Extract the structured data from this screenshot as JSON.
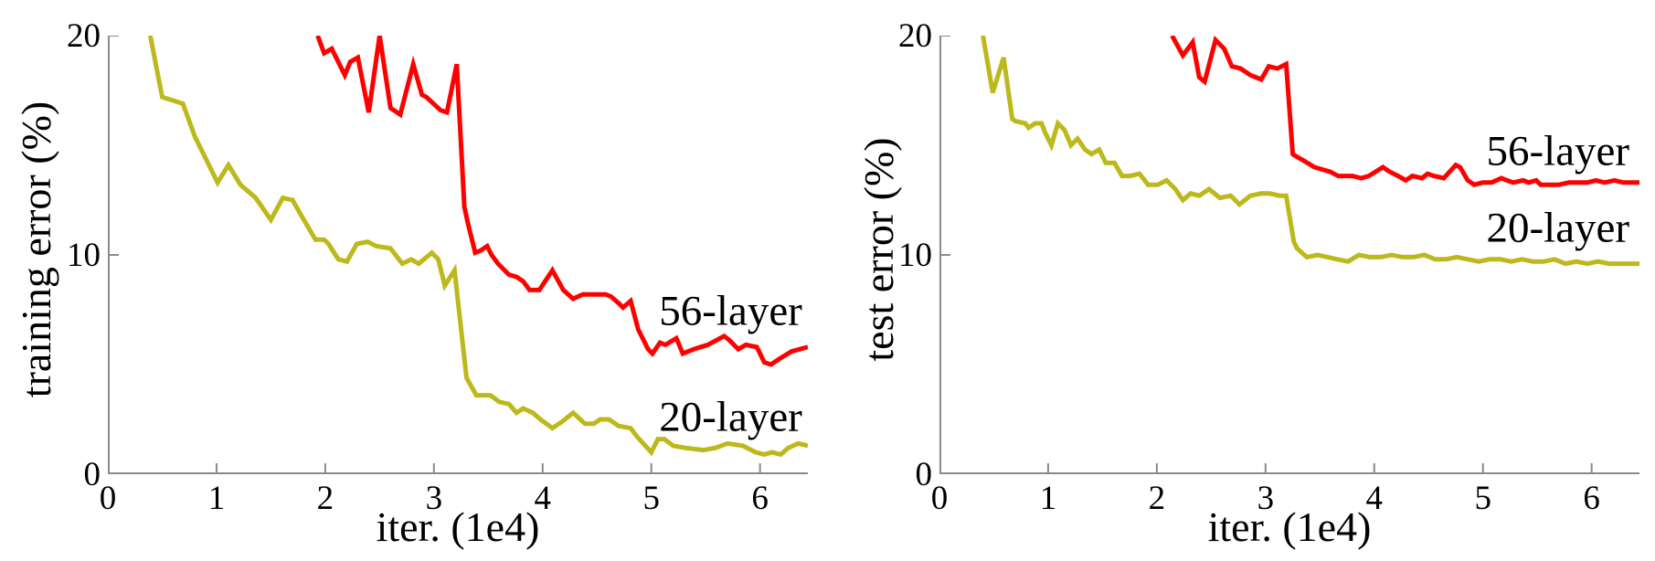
{
  "figure": {
    "background": "#ffffff",
    "text_color": "#000000",
    "axis_color": "#8a8a8a"
  },
  "chart_data": [
    {
      "type": "line",
      "name": "training-error-plot",
      "title": "",
      "xlabel": "iter. (1e4)",
      "ylabel": "training error (%)",
      "xlim": [
        0,
        6.44
      ],
      "ylim": [
        0,
        20
      ],
      "xticks": [
        0,
        1,
        2,
        3,
        4,
        5,
        6
      ],
      "yticks": [
        0,
        10,
        20
      ],
      "grid": false,
      "legend": "inline-annotations",
      "axis_color": "#8a8a8a",
      "line_width": 5,
      "annotations": [
        {
          "text": "56-layer",
          "x": 5.73,
          "y": 7.4
        },
        {
          "text": "20-layer",
          "x": 5.73,
          "y": 2.6
        }
      ],
      "series": [
        {
          "name": "56-layer",
          "color": "#ff0000",
          "points": [
            [
              1.93,
              20
            ],
            [
              1.99,
              19.2
            ],
            [
              2.06,
              19.4
            ],
            [
              2.13,
              18.7
            ],
            [
              2.18,
              18.2
            ],
            [
              2.23,
              18.8
            ],
            [
              2.3,
              19.0
            ],
            [
              2.4,
              16.5
            ],
            [
              2.5,
              20.0
            ],
            [
              2.6,
              16.7
            ],
            [
              2.69,
              16.4
            ],
            [
              2.81,
              18.7
            ],
            [
              2.89,
              17.3
            ],
            [
              2.93,
              17.2
            ],
            [
              3.06,
              16.6
            ],
            [
              3.12,
              16.5
            ],
            [
              3.21,
              18.7
            ],
            [
              3.28,
              12.2
            ],
            [
              3.31,
              11.5
            ],
            [
              3.38,
              10.1
            ],
            [
              3.43,
              10.2
            ],
            [
              3.49,
              10.4
            ],
            [
              3.53,
              10.0
            ],
            [
              3.59,
              9.6
            ],
            [
              3.69,
              9.1
            ],
            [
              3.76,
              9.0
            ],
            [
              3.82,
              8.8
            ],
            [
              3.88,
              8.4
            ],
            [
              3.97,
              8.4
            ],
            [
              4.09,
              9.3
            ],
            [
              4.19,
              8.4
            ],
            [
              4.28,
              8.0
            ],
            [
              4.37,
              8.2
            ],
            [
              4.45,
              8.2
            ],
            [
              4.58,
              8.2
            ],
            [
              4.63,
              8.1
            ],
            [
              4.7,
              7.8
            ],
            [
              4.74,
              7.6
            ],
            [
              4.81,
              7.9
            ],
            [
              4.88,
              6.6
            ],
            [
              4.97,
              5.7
            ],
            [
              5.01,
              5.5
            ],
            [
              5.08,
              6.0
            ],
            [
              5.13,
              5.9
            ],
            [
              5.23,
              6.2
            ],
            [
              5.29,
              5.5
            ],
            [
              5.39,
              5.7
            ],
            [
              5.52,
              5.9
            ],
            [
              5.67,
              6.3
            ],
            [
              5.72,
              6.1
            ],
            [
              5.8,
              5.7
            ],
            [
              5.87,
              5.9
            ],
            [
              5.97,
              5.8
            ],
            [
              6.04,
              5.1
            ],
            [
              6.1,
              5.0
            ],
            [
              6.19,
              5.3
            ],
            [
              6.29,
              5.6
            ],
            [
              6.44,
              5.8
            ]
          ]
        },
        {
          "name": "20-layer",
          "color": "#bdb81c",
          "points": [
            [
              0.39,
              20
            ],
            [
              0.5,
              17.2
            ],
            [
              0.69,
              16.9
            ],
            [
              0.8,
              15.4
            ],
            [
              1.01,
              13.3
            ],
            [
              1.11,
              14.1
            ],
            [
              1.22,
              13.2
            ],
            [
              1.36,
              12.6
            ],
            [
              1.5,
              11.6
            ],
            [
              1.61,
              12.6
            ],
            [
              1.7,
              12.5
            ],
            [
              1.78,
              11.8
            ],
            [
              1.91,
              10.7
            ],
            [
              1.99,
              10.7
            ],
            [
              2.03,
              10.5
            ],
            [
              2.12,
              9.8
            ],
            [
              2.2,
              9.7
            ],
            [
              2.29,
              10.5
            ],
            [
              2.39,
              10.6
            ],
            [
              2.47,
              10.4
            ],
            [
              2.6,
              10.3
            ],
            [
              2.71,
              9.6
            ],
            [
              2.79,
              9.8
            ],
            [
              2.86,
              9.6
            ],
            [
              2.98,
              10.1
            ],
            [
              3.04,
              9.8
            ],
            [
              3.1,
              8.6
            ],
            [
              3.19,
              9.3
            ],
            [
              3.25,
              6.6
            ],
            [
              3.3,
              4.4
            ],
            [
              3.39,
              3.6
            ],
            [
              3.52,
              3.6
            ],
            [
              3.6,
              3.3
            ],
            [
              3.69,
              3.2
            ],
            [
              3.76,
              2.8
            ],
            [
              3.82,
              3.0
            ],
            [
              3.91,
              2.8
            ],
            [
              3.98,
              2.5
            ],
            [
              4.09,
              2.1
            ],
            [
              4.18,
              2.4
            ],
            [
              4.28,
              2.8
            ],
            [
              4.39,
              2.3
            ],
            [
              4.47,
              2.3
            ],
            [
              4.53,
              2.5
            ],
            [
              4.61,
              2.5
            ],
            [
              4.7,
              2.2
            ],
            [
              4.81,
              2.1
            ],
            [
              4.87,
              1.7
            ],
            [
              5.0,
              1.0
            ],
            [
              5.06,
              1.6
            ],
            [
              5.12,
              1.6
            ],
            [
              5.2,
              1.3
            ],
            [
              5.31,
              1.2
            ],
            [
              5.48,
              1.1
            ],
            [
              5.59,
              1.2
            ],
            [
              5.7,
              1.4
            ],
            [
              5.84,
              1.3
            ],
            [
              5.96,
              1.0
            ],
            [
              6.04,
              0.9
            ],
            [
              6.11,
              1.0
            ],
            [
              6.19,
              0.9
            ],
            [
              6.26,
              1.2
            ],
            [
              6.35,
              1.4
            ],
            [
              6.44,
              1.3
            ]
          ]
        }
      ]
    },
    {
      "type": "line",
      "name": "test-error-plot",
      "title": "",
      "xlabel": "iter. (1e4)",
      "ylabel": "test error (%)",
      "xlim": [
        0,
        6.44
      ],
      "ylim": [
        0,
        20
      ],
      "xticks": [
        0,
        1,
        2,
        3,
        4,
        5,
        6
      ],
      "yticks": [
        0,
        10,
        20
      ],
      "grid": false,
      "legend": "inline-annotations",
      "axis_color": "#8a8a8a",
      "line_width": 5,
      "annotations": [
        {
          "text": "56-layer",
          "x": 5.69,
          "y": 14.7
        },
        {
          "text": "20-layer",
          "x": 5.69,
          "y": 11.2
        }
      ],
      "series": [
        {
          "name": "56-layer",
          "color": "#ff0000",
          "points": [
            [
              2.14,
              20
            ],
            [
              2.24,
              19.1
            ],
            [
              2.33,
              19.7
            ],
            [
              2.39,
              18.1
            ],
            [
              2.44,
              17.9
            ],
            [
              2.54,
              19.8
            ],
            [
              2.62,
              19.4
            ],
            [
              2.69,
              18.6
            ],
            [
              2.77,
              18.5
            ],
            [
              2.86,
              18.2
            ],
            [
              2.96,
              18.0
            ],
            [
              3.03,
              18.6
            ],
            [
              3.11,
              18.5
            ],
            [
              3.19,
              18.7
            ],
            [
              3.25,
              14.6
            ],
            [
              3.28,
              14.5
            ],
            [
              3.35,
              14.3
            ],
            [
              3.45,
              14.0
            ],
            [
              3.59,
              13.8
            ],
            [
              3.67,
              13.6
            ],
            [
              3.8,
              13.6
            ],
            [
              3.88,
              13.5
            ],
            [
              3.95,
              13.6
            ],
            [
              4.08,
              14.0
            ],
            [
              4.14,
              13.8
            ],
            [
              4.22,
              13.6
            ],
            [
              4.29,
              13.4
            ],
            [
              4.35,
              13.6
            ],
            [
              4.44,
              13.5
            ],
            [
              4.49,
              13.7
            ],
            [
              4.55,
              13.6
            ],
            [
              4.64,
              13.5
            ],
            [
              4.75,
              14.1
            ],
            [
              4.79,
              14.0
            ],
            [
              4.86,
              13.4
            ],
            [
              4.92,
              13.2
            ],
            [
              5.0,
              13.3
            ],
            [
              5.08,
              13.3
            ],
            [
              5.17,
              13.5
            ],
            [
              5.22,
              13.4
            ],
            [
              5.28,
              13.3
            ],
            [
              5.37,
              13.4
            ],
            [
              5.42,
              13.3
            ],
            [
              5.49,
              13.4
            ],
            [
              5.53,
              13.2
            ],
            [
              5.61,
              13.2
            ],
            [
              5.7,
              13.2
            ],
            [
              5.79,
              13.3
            ],
            [
              5.88,
              13.3
            ],
            [
              5.96,
              13.3
            ],
            [
              6.04,
              13.4
            ],
            [
              6.12,
              13.3
            ],
            [
              6.21,
              13.4
            ],
            [
              6.29,
              13.3
            ],
            [
              6.44,
              13.3
            ]
          ]
        },
        {
          "name": "20-layer",
          "color": "#bdb81c",
          "points": [
            [
              0.4,
              20
            ],
            [
              0.49,
              17.4
            ],
            [
              0.59,
              19.0
            ],
            [
              0.67,
              16.2
            ],
            [
              0.7,
              16.1
            ],
            [
              0.79,
              16.0
            ],
            [
              0.82,
              15.8
            ],
            [
              0.88,
              16.0
            ],
            [
              0.94,
              16.0
            ],
            [
              0.97,
              15.6
            ],
            [
              1.03,
              15.0
            ],
            [
              1.09,
              16.0
            ],
            [
              1.15,
              15.7
            ],
            [
              1.21,
              15.0
            ],
            [
              1.27,
              15.3
            ],
            [
              1.34,
              14.8
            ],
            [
              1.4,
              14.6
            ],
            [
              1.47,
              14.8
            ],
            [
              1.53,
              14.2
            ],
            [
              1.61,
              14.2
            ],
            [
              1.68,
              13.6
            ],
            [
              1.75,
              13.6
            ],
            [
              1.84,
              13.7
            ],
            [
              1.92,
              13.2
            ],
            [
              2.01,
              13.2
            ],
            [
              2.09,
              13.4
            ],
            [
              2.17,
              13.0
            ],
            [
              2.24,
              12.5
            ],
            [
              2.31,
              12.8
            ],
            [
              2.39,
              12.7
            ],
            [
              2.48,
              13.0
            ],
            [
              2.58,
              12.6
            ],
            [
              2.68,
              12.7
            ],
            [
              2.76,
              12.3
            ],
            [
              2.86,
              12.7
            ],
            [
              2.96,
              12.8
            ],
            [
              3.04,
              12.8
            ],
            [
              3.13,
              12.7
            ],
            [
              3.19,
              12.7
            ],
            [
              3.26,
              10.6
            ],
            [
              3.29,
              10.3
            ],
            [
              3.38,
              9.9
            ],
            [
              3.48,
              10.0
            ],
            [
              3.57,
              9.9
            ],
            [
              3.66,
              9.8
            ],
            [
              3.76,
              9.7
            ],
            [
              3.86,
              10.0
            ],
            [
              3.96,
              9.9
            ],
            [
              4.06,
              9.9
            ],
            [
              4.16,
              10.0
            ],
            [
              4.26,
              9.9
            ],
            [
              4.36,
              9.9
            ],
            [
              4.46,
              10.0
            ],
            [
              4.56,
              9.8
            ],
            [
              4.66,
              9.8
            ],
            [
              4.76,
              9.9
            ],
            [
              4.86,
              9.8
            ],
            [
              4.96,
              9.7
            ],
            [
              5.06,
              9.8
            ],
            [
              5.16,
              9.8
            ],
            [
              5.26,
              9.7
            ],
            [
              5.36,
              9.8
            ],
            [
              5.46,
              9.7
            ],
            [
              5.56,
              9.7
            ],
            [
              5.66,
              9.8
            ],
            [
              5.76,
              9.6
            ],
            [
              5.86,
              9.7
            ],
            [
              5.96,
              9.6
            ],
            [
              6.06,
              9.7
            ],
            [
              6.16,
              9.6
            ],
            [
              6.26,
              9.6
            ],
            [
              6.44,
              9.6
            ]
          ]
        }
      ]
    }
  ]
}
